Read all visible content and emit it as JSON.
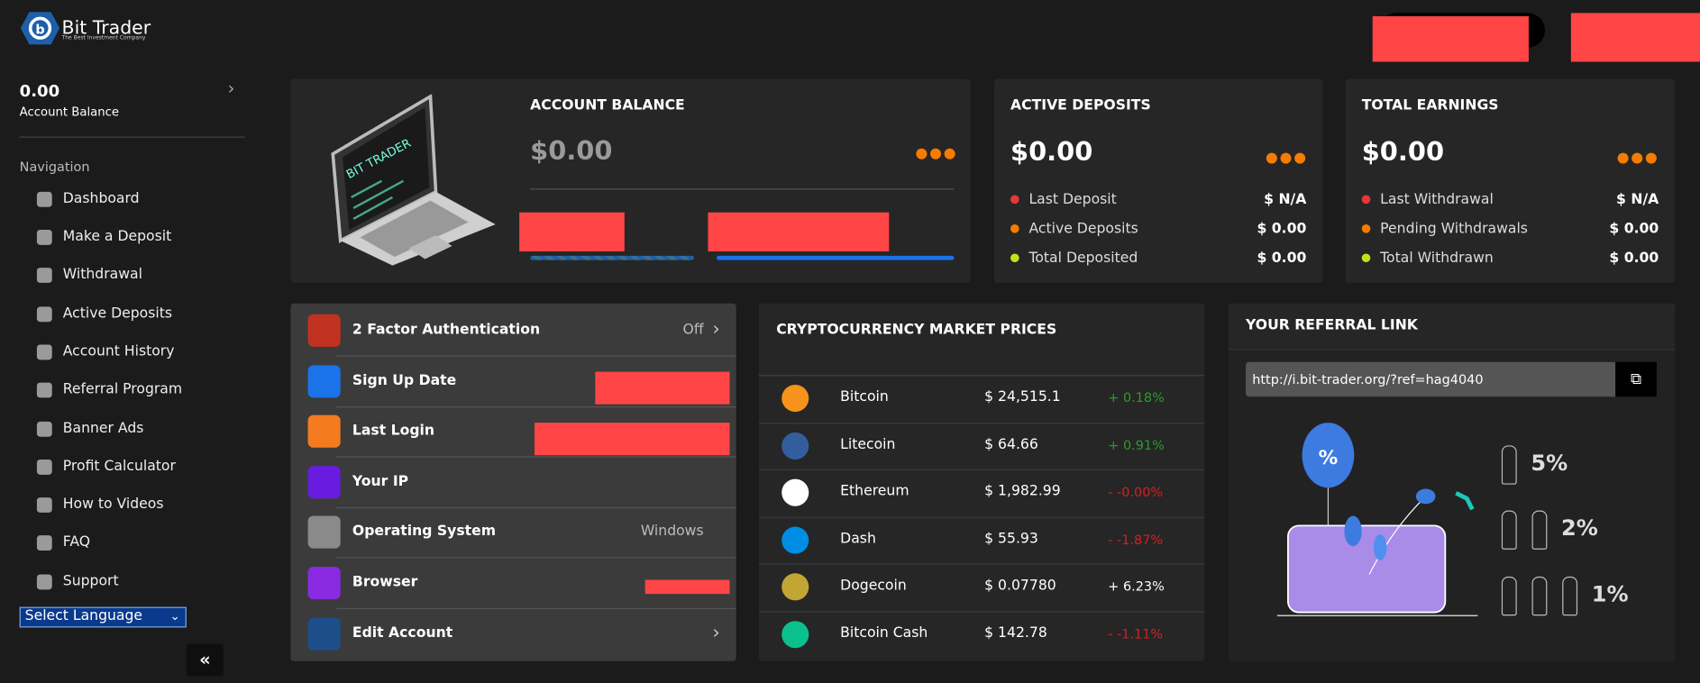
{
  "brand": {
    "name": "Bit Trader",
    "tagline": "The Best Investment Company"
  },
  "sidebar": {
    "balance": "0.00",
    "balance_label": "Account Balance",
    "nav_heading": "Navigation",
    "nav": [
      "Dashboard",
      "Make a Deposit",
      "Withdrawal",
      "Active Deposits",
      "Account History",
      "Referral Program",
      "Banner Ads",
      "Profit Calculator",
      "How to Videos",
      "FAQ",
      "Support"
    ],
    "language": "Select Language"
  },
  "account_balance": {
    "title": "ACCOUNT BALANCE",
    "amount": "$0.00"
  },
  "active_deposits": {
    "title": "ACTIVE DEPOSITS",
    "amount": "$0.00",
    "rows": [
      {
        "label": "Last Deposit",
        "value": "$ N/A"
      },
      {
        "label": "Active Deposits",
        "value": "$ 0.00"
      },
      {
        "label": "Total Deposited",
        "value": "$ 0.00"
      }
    ]
  },
  "total_earnings": {
    "title": "TOTAL EARNINGS",
    "amount": "$0.00",
    "rows": [
      {
        "label": "Last Withdrawal",
        "value": "$ N/A"
      },
      {
        "label": "Pending Withdrawals",
        "value": "$ 0.00"
      },
      {
        "label": "Total Withdrawn",
        "value": "$ 0.00"
      }
    ]
  },
  "security": {
    "rows": [
      {
        "label": "2 Factor Authentication",
        "value": "Off"
      },
      {
        "label": "Sign Up Date"
      },
      {
        "label": "Last Login"
      },
      {
        "label": "Your IP"
      },
      {
        "label": "Operating System",
        "value": "Windows"
      },
      {
        "label": "Browser"
      },
      {
        "label": "Edit Account"
      }
    ]
  },
  "market": {
    "title": "CRYPTOCURRENCY MARKET PRICES",
    "rows": [
      {
        "name": "Bitcoin",
        "price": "$ 24,515.1",
        "change": "+ 0.18%",
        "color": "#2a9d2a"
      },
      {
        "name": "Litecoin",
        "price": "$ 64.66",
        "change": "+ 0.91%",
        "color": "#2a9d2a"
      },
      {
        "name": "Ethereum",
        "price": "$ 1,982.99",
        "change": "- -0.00%",
        "color": "#d32020"
      },
      {
        "name": "Dash",
        "price": "$ 55.93",
        "change": "- -1.87%",
        "color": "#d32020"
      },
      {
        "name": "Dogecoin",
        "price": "$ 0.07780",
        "change": "+ 6.23%",
        "color": "#ffffff"
      },
      {
        "name": "Bitcoin Cash",
        "price": "$ 142.78",
        "change": "- -1.11%",
        "color": "#d32020"
      }
    ]
  },
  "referral": {
    "title": "YOUR REFERRAL LINK",
    "link": "http://i.bit-trader.org/?ref=hag4040",
    "levels": [
      "5%",
      "2%",
      "1%"
    ]
  }
}
